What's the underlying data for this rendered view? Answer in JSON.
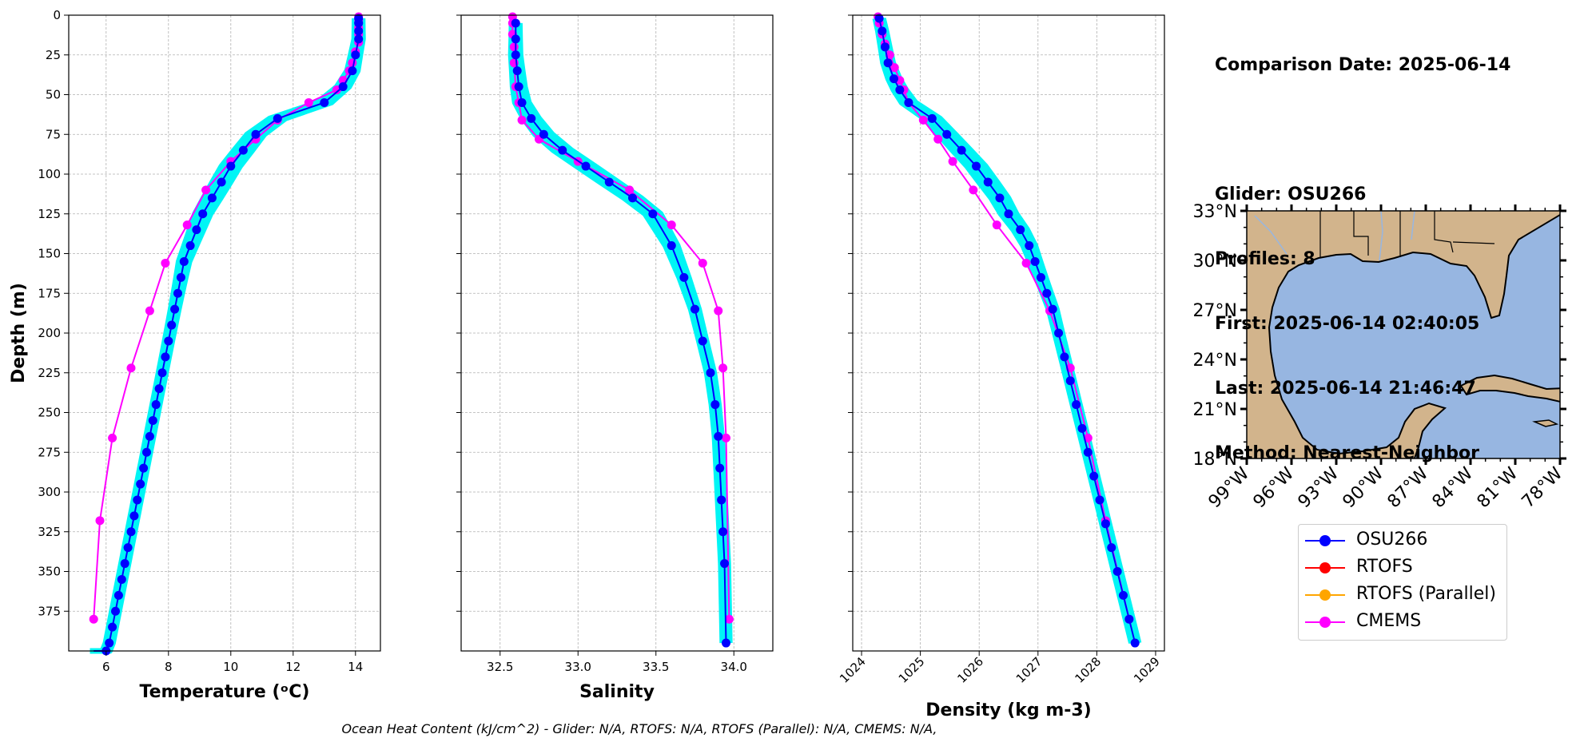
{
  "chart_data": [
    {
      "type": "line",
      "xlabel": "Temperature (ᵒC)",
      "ylabel": "Depth (m)",
      "xlim": [
        4.8,
        14.8
      ],
      "ylim": [
        400,
        0
      ],
      "xticks": [
        6,
        8,
        10,
        12,
        14
      ],
      "yticks": [
        0,
        25,
        50,
        75,
        100,
        125,
        150,
        175,
        200,
        225,
        250,
        275,
        300,
        325,
        350,
        375
      ],
      "grid": true,
      "series": [
        {
          "name": "OSU266",
          "color": "#0000ff",
          "x": [
            14.1,
            14.1,
            14.1,
            14.1,
            14.0,
            13.9,
            13.6,
            13.0,
            11.5,
            10.8,
            10.4,
            10.0,
            9.7,
            9.4,
            9.1,
            8.9,
            8.7,
            8.5,
            8.4,
            8.3,
            8.2,
            8.1,
            8.0,
            7.9,
            7.8,
            7.7,
            7.6,
            7.5,
            7.4,
            7.3,
            7.2,
            7.1,
            7.0,
            6.9,
            6.8,
            6.7,
            6.6,
            6.5,
            6.4,
            6.3,
            6.2,
            6.1,
            6.0,
            5.9,
            5.85,
            5.8,
            5.7,
            5.6
          ],
          "y": [
            2,
            5,
            10,
            15,
            25,
            35,
            45,
            55,
            65,
            75,
            85,
            95,
            105,
            115,
            125,
            135,
            145,
            155,
            165,
            175,
            185,
            195,
            205,
            215,
            225,
            235,
            245,
            255,
            265,
            275,
            285,
            295,
            305,
            315,
            325,
            335,
            345,
            355,
            365,
            375,
            385,
            395,
            400,
            400,
            400,
            400,
            400,
            400
          ]
        },
        {
          "name": "CMEMS",
          "color": "#ff00ff",
          "x": [
            14.1,
            14.1,
            14.1,
            14.1,
            14.1,
            14.1,
            14.0,
            13.9,
            13.8,
            13.6,
            13.4,
            12.5,
            11.5,
            10.8,
            10.0,
            9.2,
            8.6,
            7.9,
            7.4,
            6.8,
            6.2,
            5.8,
            5.6
          ],
          "y": [
            1,
            3,
            5,
            8,
            12,
            17,
            23,
            30,
            35,
            41,
            47,
            55,
            66,
            78,
            92,
            110,
            132,
            156,
            186,
            222,
            266,
            318,
            380
          ]
        }
      ]
    },
    {
      "type": "line",
      "xlabel": "Salinity",
      "xlim": [
        32.25,
        34.25
      ],
      "ylim": [
        400,
        0
      ],
      "xticks": [
        32.5,
        33.0,
        33.5,
        34.0
      ],
      "xticklabels": [
        "32.5",
        "33.0",
        "33.5",
        "34.0"
      ],
      "grid": true,
      "series": [
        {
          "name": "OSU266",
          "color": "#0000ff",
          "x": [
            32.6,
            32.6,
            32.6,
            32.61,
            32.62,
            32.64,
            32.7,
            32.78,
            32.9,
            33.05,
            33.2,
            33.35,
            33.48,
            33.6,
            33.68,
            33.75,
            33.8,
            33.85,
            33.88,
            33.9,
            33.91,
            33.92,
            33.93,
            33.94,
            33.95
          ],
          "y": [
            5,
            15,
            25,
            35,
            45,
            55,
            65,
            75,
            85,
            95,
            105,
            115,
            125,
            145,
            165,
            185,
            205,
            225,
            245,
            265,
            285,
            305,
            325,
            345,
            395
          ]
        },
        {
          "name": "CMEMS",
          "color": "#ff00ff",
          "x": [
            32.58,
            32.58,
            32.58,
            32.59,
            32.59,
            32.6,
            32.62,
            32.64,
            32.75,
            33.0,
            33.33,
            33.6,
            33.8,
            33.9,
            33.93,
            33.95,
            33.97
          ],
          "y": [
            1,
            5,
            12,
            20,
            30,
            45,
            55,
            66,
            78,
            92,
            110,
            132,
            156,
            186,
            222,
            266,
            380
          ]
        }
      ]
    },
    {
      "type": "line",
      "xlabel": "Density (kg m-3)",
      "xlim": [
        1023.85,
        1029.15
      ],
      "ylim": [
        400,
        0
      ],
      "xticks": [
        1024,
        1025,
        1026,
        1027,
        1028,
        1029
      ],
      "xticklabels": [
        "1024",
        "1025",
        "1026",
        "1027",
        "1028",
        "1029"
      ],
      "grid": true,
      "series": [
        {
          "name": "OSU266",
          "color": "#0000ff",
          "x": [
            1024.3,
            1024.35,
            1024.4,
            1024.45,
            1024.55,
            1024.65,
            1024.8,
            1025.2,
            1025.45,
            1025.7,
            1025.95,
            1026.15,
            1026.35,
            1026.5,
            1026.7,
            1026.85,
            1026.95,
            1027.05,
            1027.15,
            1027.25,
            1027.35,
            1027.45,
            1027.55,
            1027.65,
            1027.75,
            1027.85,
            1027.95,
            1028.05,
            1028.15,
            1028.25,
            1028.35,
            1028.45,
            1028.55,
            1028.65
          ],
          "y": [
            2,
            10,
            20,
            30,
            40,
            47,
            55,
            65,
            75,
            85,
            95,
            105,
            115,
            125,
            135,
            145,
            155,
            165,
            175,
            185,
            200,
            215,
            230,
            245,
            260,
            275,
            290,
            305,
            320,
            335,
            350,
            365,
            380,
            395
          ]
        },
        {
          "name": "CMEMS",
          "color": "#ff00ff",
          "x": [
            1024.28,
            1024.3,
            1024.35,
            1024.4,
            1024.48,
            1024.56,
            1024.65,
            1024.72,
            1024.8,
            1025.05,
            1025.3,
            1025.55,
            1025.9,
            1026.3,
            1026.8,
            1027.2,
            1027.55,
            1027.85,
            1028.15,
            1028.55
          ],
          "y": [
            1,
            5,
            12,
            18,
            25,
            33,
            41,
            47,
            55,
            66,
            78,
            92,
            110,
            132,
            156,
            186,
            222,
            266,
            318,
            380
          ]
        }
      ]
    }
  ],
  "info": {
    "lines": [
      "Comparison Date: 2025-06-14",
      "",
      "Glider: OSU266",
      "Profiles: 8",
      "First: 2025-06-14 02:40:05",
      "Last: 2025-06-14 21:46:47",
      "Method: Nearest-Neighbor"
    ]
  },
  "map": {
    "lat_ticks": [
      "33°N",
      "30°N",
      "27°N",
      "24°N",
      "21°N",
      "18°N"
    ],
    "lon_ticks": [
      "99°W",
      "96°W",
      "93°W",
      "90°W",
      "87°W",
      "84°W",
      "81°W",
      "78°W"
    ],
    "land_color": "#d2b48c",
    "ocean_color": "#97b6e1"
  },
  "legend": {
    "items": [
      {
        "label": "OSU266",
        "color": "#0000ff"
      },
      {
        "label": "RTOFS",
        "color": "#ff0000"
      },
      {
        "label": "RTOFS (Parallel)",
        "color": "#ffa500"
      },
      {
        "label": "CMEMS",
        "color": "#ff00ff"
      }
    ]
  },
  "footer": "Ocean Heat Content (kJ/cm^2) - Glider: N/A,  RTOFS: N/A,  RTOFS (Parallel): N/A,  CMEMS: N/A,",
  "colors": {
    "glider_cloud": "#00f5f5",
    "grid": "#b0b0b0"
  }
}
